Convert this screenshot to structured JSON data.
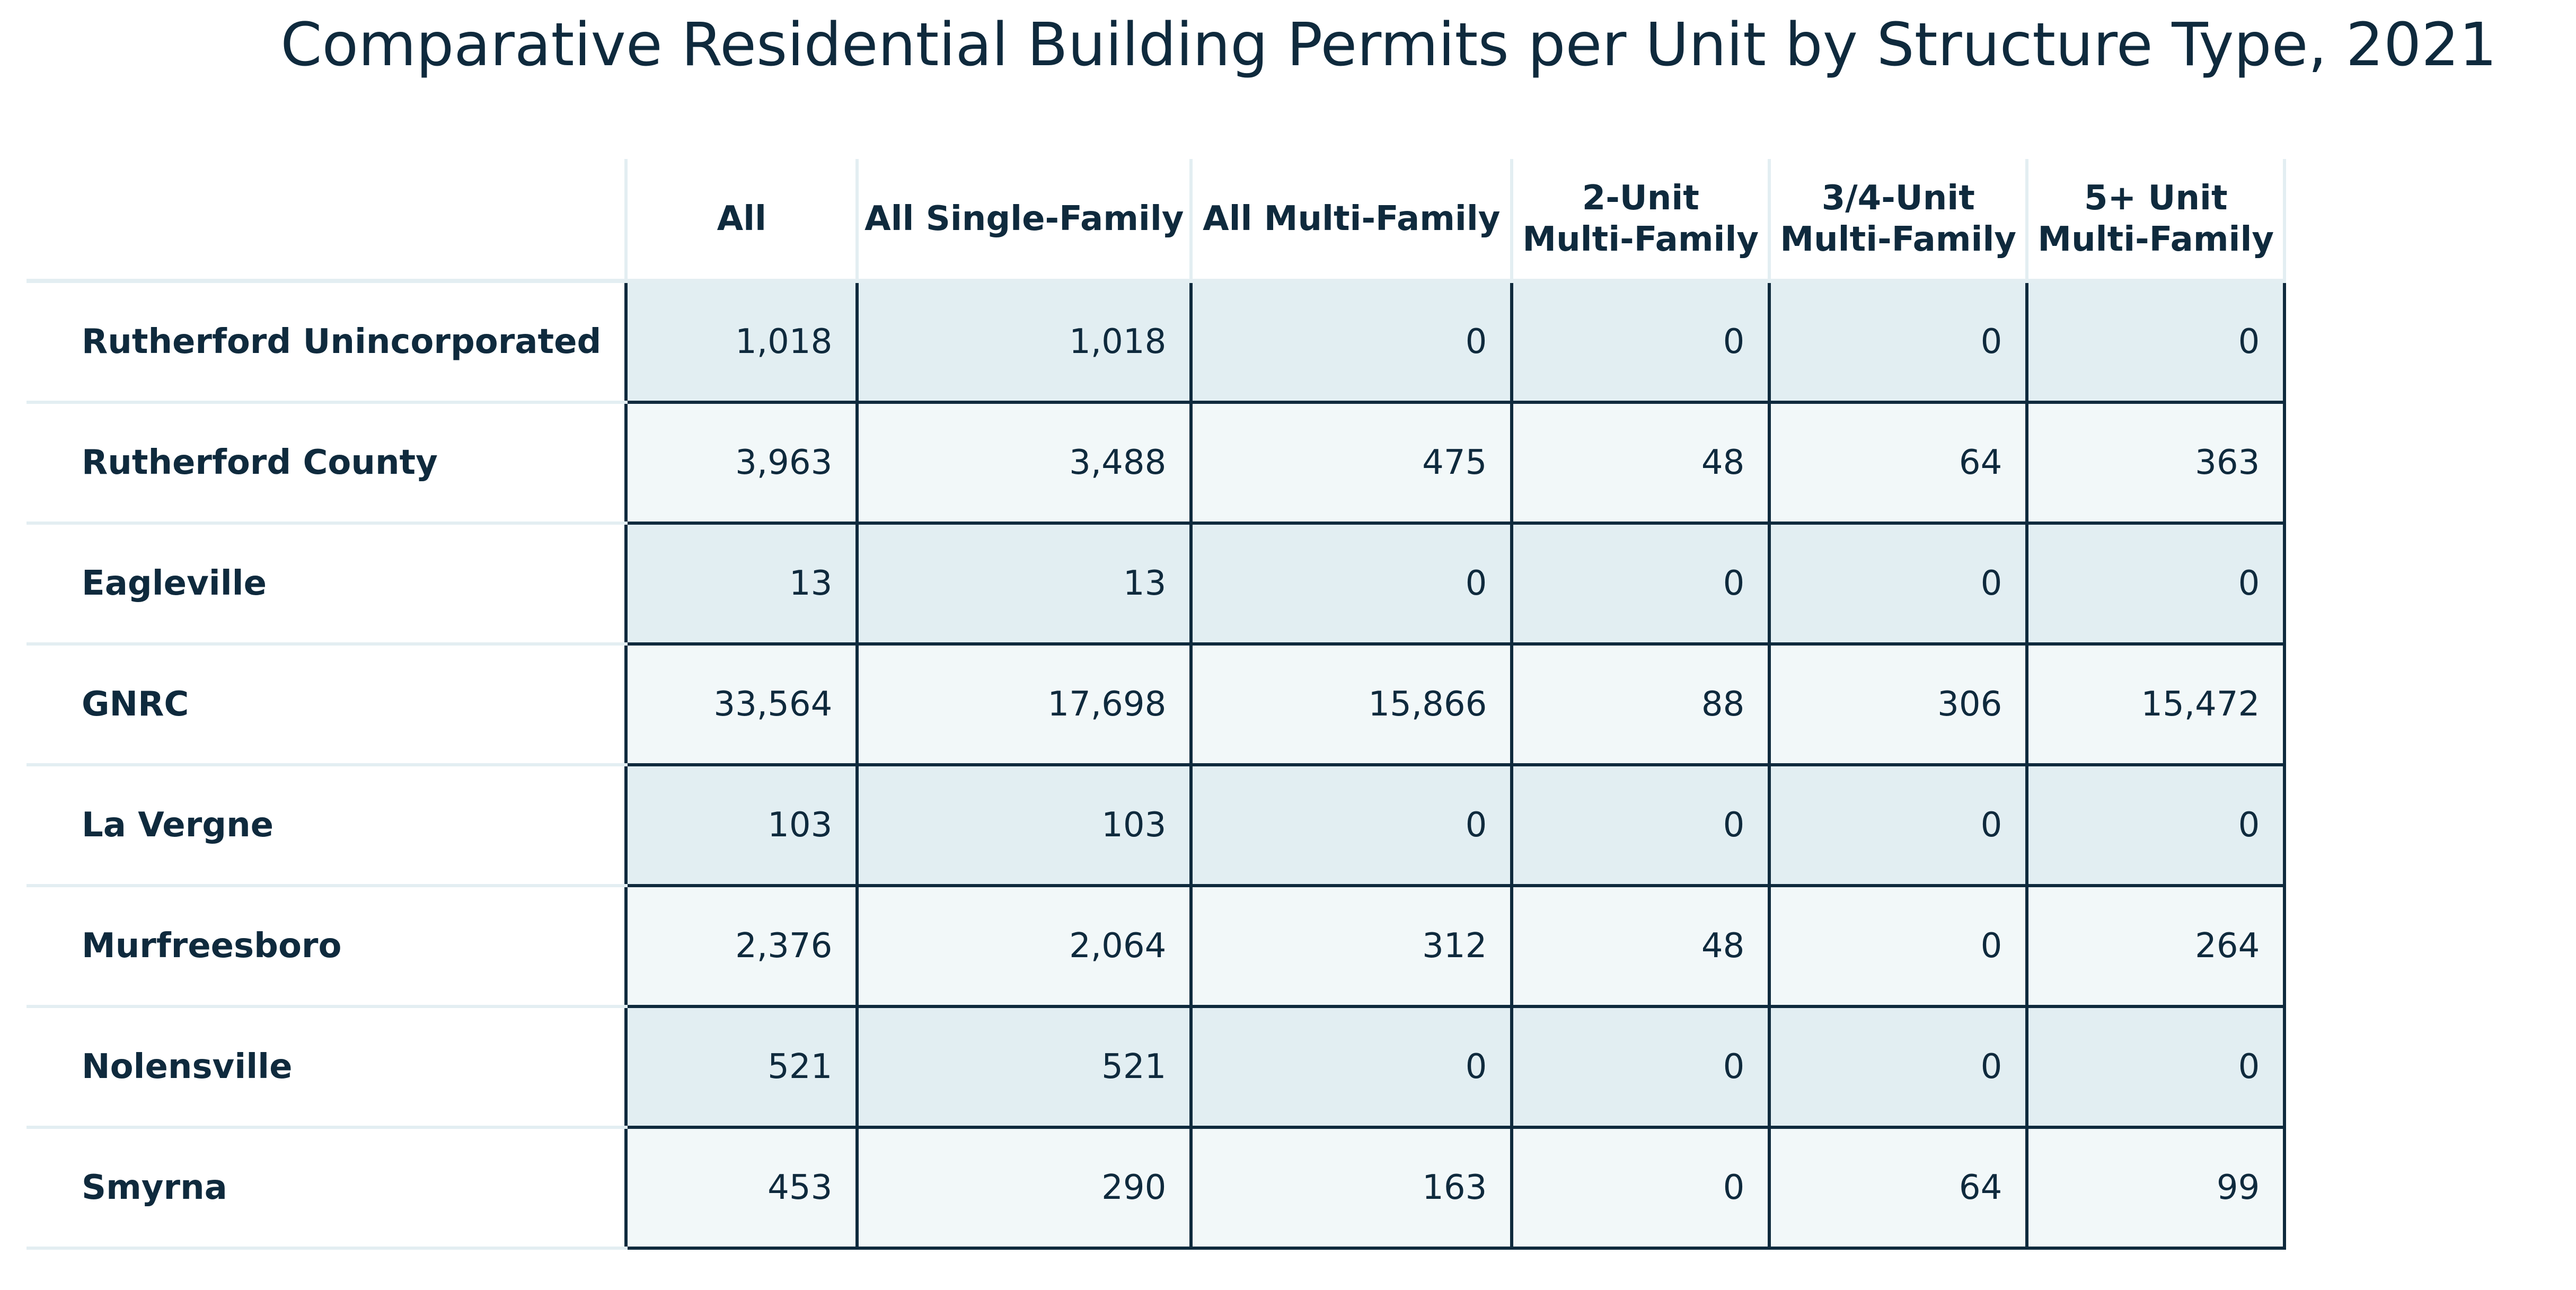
{
  "chart_data": {
    "type": "table",
    "title": "Comparative Residential Building Permits per Unit by Structure Type, 2021",
    "columns": [
      "All",
      "All Single-Family",
      "All Multi-Family",
      "2-Unit\nMulti-Family",
      "3/4-Unit\nMulti-Family",
      "5+ Unit\nMulti-Family"
    ],
    "rows": [
      {
        "label": "Rutherford Unincorporated",
        "values": [
          "1,018",
          "1,018",
          "0",
          "0",
          "0",
          "0"
        ]
      },
      {
        "label": "Rutherford County",
        "values": [
          "3,963",
          "3,488",
          "475",
          "48",
          "64",
          "363"
        ]
      },
      {
        "label": "Eagleville",
        "values": [
          "13",
          "13",
          "0",
          "0",
          "0",
          "0"
        ]
      },
      {
        "label": "GNRC",
        "values": [
          "33,564",
          "17,698",
          "15,866",
          "88",
          "306",
          "15,472"
        ]
      },
      {
        "label": "La Vergne",
        "values": [
          "103",
          "103",
          "0",
          "0",
          "0",
          "0"
        ]
      },
      {
        "label": "Murfreesboro",
        "values": [
          "2,376",
          "2,064",
          "312",
          "48",
          "0",
          "264"
        ]
      },
      {
        "label": "Nolensville",
        "values": [
          "521",
          "521",
          "0",
          "0",
          "0",
          "0"
        ]
      },
      {
        "label": "Smyrna",
        "values": [
          "453",
          "290",
          "163",
          "0",
          "64",
          "99"
        ]
      }
    ],
    "colors": {
      "text": "#0f2a3d",
      "row_band_a": "#e2eef2",
      "row_band_b": "#f2f8f9",
      "cell_border": "#0f2a3d",
      "light_rule": "#e3eef2"
    }
  }
}
